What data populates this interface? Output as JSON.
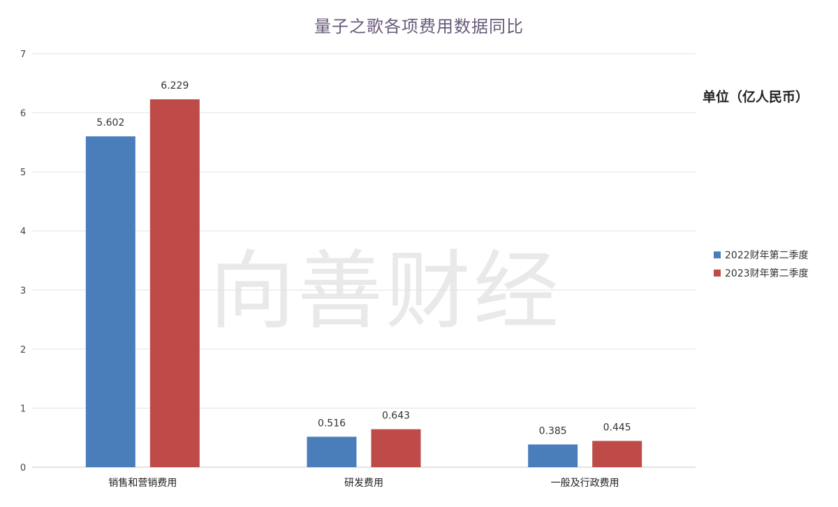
{
  "chart_data": {
    "type": "bar",
    "title": "量子之歌各项费用数据同比",
    "unit": "单位（亿人民币）",
    "categories": [
      "销售和营销费用",
      "研发费用",
      "一般及行政费用"
    ],
    "series": [
      {
        "name": "2022财年第二季度",
        "color": "#4a7ebb",
        "values": [
          5.602,
          0.516,
          0.385
        ]
      },
      {
        "name": "2023财年第二季度",
        "color": "#be4b48",
        "values": [
          6.229,
          0.643,
          0.445
        ]
      }
    ],
    "data_labels": [
      [
        "5.602",
        "0.516",
        "0.385"
      ],
      [
        "6.229",
        "0.643",
        "0.445"
      ]
    ],
    "yticks": [
      "0",
      "1",
      "2",
      "3",
      "4",
      "5",
      "6",
      "7"
    ],
    "ylim": [
      0,
      7
    ],
    "grid": true,
    "legend_position": "right",
    "xlabel": "",
    "ylabel": ""
  },
  "watermark": "向善财经"
}
